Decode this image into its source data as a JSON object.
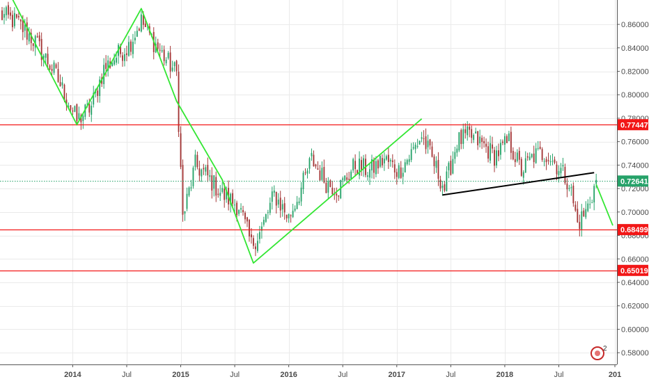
{
  "chart_data": {
    "type": "candlestick",
    "title": "",
    "xlabel": "",
    "ylabel": "",
    "ylim": [
      0.57,
      0.8808
    ],
    "xlim": [
      "2013-05-06",
      "2019-01-14"
    ],
    "grid": true,
    "y_ticks": [
      "0.58000",
      "0.60000",
      "0.62000",
      "0.64000",
      "0.66000",
      "0.68000",
      "0.70000",
      "0.72000",
      "0.74000",
      "0.76000",
      "0.78000",
      "0.80000",
      "0.82000",
      "0.84000",
      "0.86000"
    ],
    "y_tick_values": [
      0.58,
      0.6,
      0.62,
      0.64,
      0.66,
      0.68,
      0.7,
      0.72,
      0.74,
      0.76,
      0.78,
      0.8,
      0.82,
      0.84,
      0.86
    ],
    "x_ticks": [
      {
        "label": "2014",
        "date": "2014-01-06",
        "bold": true
      },
      {
        "label": "Jul",
        "date": "2014-07-07",
        "bold": false
      },
      {
        "label": "2015",
        "date": "2015-01-05",
        "bold": true
      },
      {
        "label": "Jul",
        "date": "2015-07-06",
        "bold": false
      },
      {
        "label": "2016",
        "date": "2016-01-04",
        "bold": true
      },
      {
        "label": "Jul",
        "date": "2016-07-04",
        "bold": false
      },
      {
        "label": "2017",
        "date": "2017-01-02",
        "bold": true
      },
      {
        "label": "Jul",
        "date": "2017-07-03",
        "bold": false
      },
      {
        "label": "2018",
        "date": "2018-01-01",
        "bold": true
      },
      {
        "label": "Jul",
        "date": "2018-07-02",
        "bold": false
      },
      {
        "label": "201",
        "date": "2019-01-07",
        "bold": true
      }
    ],
    "horizontal_levels": [
      {
        "value": 0.77447,
        "label": "0.77447",
        "color": "#f21717"
      },
      {
        "value": 0.68499,
        "label": "0.68499",
        "color": "#f21717"
      },
      {
        "value": 0.65019,
        "label": "0.65019",
        "color": "#f21717"
      }
    ],
    "current_price": {
      "value": 0.72641,
      "label": "0.72641",
      "color": "#26a269"
    },
    "zigzag_line": {
      "color": "#33e633",
      "points": [
        {
          "x": "2013-06-10",
          "y": 0.885
        },
        {
          "x": "2014-01-20",
          "y": 0.7745
        },
        {
          "x": "2014-08-25",
          "y": 0.8735
        },
        {
          "x": "2014-12-22",
          "y": 0.7945
        },
        {
          "x": "2015-05-25",
          "y": 0.7275
        },
        {
          "x": "2015-09-07",
          "y": 0.6565
        },
        {
          "x": "2017-03-27",
          "y": 0.7795
        }
      ]
    },
    "projection_line": {
      "color": "#33e633",
      "points": [
        {
          "x": "2018-11-05",
          "y": 0.7235
        },
        {
          "x": "2018-12-31",
          "y": 0.6885
        }
      ]
    },
    "trend_line": {
      "color": "#000000",
      "points": [
        {
          "x": "2017-06-05",
          "y": 0.7145
        },
        {
          "x": "2018-10-29",
          "y": 0.7335
        }
      ]
    },
    "badge": {
      "label": "2"
    },
    "series": [
      {
        "name": "",
        "up_color": "#26a269",
        "down_color": "#a33434",
        "anchors": [
          [
            "2013-05-06",
            0.868
          ],
          [
            "2013-07-01",
            0.862
          ],
          [
            "2013-09-02",
            0.845
          ],
          [
            "2013-11-04",
            0.82
          ],
          [
            "2014-01-20",
            0.778
          ],
          [
            "2014-03-10",
            0.79
          ],
          [
            "2014-04-21",
            0.822
          ],
          [
            "2014-06-02",
            0.833
          ],
          [
            "2014-07-14",
            0.842
          ],
          [
            "2014-08-25",
            0.863
          ],
          [
            "2014-10-06",
            0.845
          ],
          [
            "2014-11-17",
            0.83
          ],
          [
            "2014-12-22",
            0.818
          ],
          [
            "2015-01-12",
            0.695
          ],
          [
            "2015-02-23",
            0.74
          ],
          [
            "2015-04-06",
            0.73
          ],
          [
            "2015-05-25",
            0.715
          ],
          [
            "2015-07-20",
            0.705
          ],
          [
            "2015-08-31",
            0.672
          ],
          [
            "2015-10-05",
            0.685
          ],
          [
            "2015-11-16",
            0.715
          ],
          [
            "2016-01-04",
            0.695
          ],
          [
            "2016-02-15",
            0.72
          ],
          [
            "2016-03-21",
            0.745
          ],
          [
            "2016-05-09",
            0.725
          ],
          [
            "2016-06-20",
            0.72
          ],
          [
            "2016-08-15",
            0.74
          ],
          [
            "2016-10-03",
            0.735
          ],
          [
            "2016-11-21",
            0.745
          ],
          [
            "2017-01-09",
            0.735
          ],
          [
            "2017-02-20",
            0.75
          ],
          [
            "2017-03-27",
            0.765
          ],
          [
            "2017-05-01",
            0.745
          ],
          [
            "2017-06-12",
            0.72
          ],
          [
            "2017-07-24",
            0.76
          ],
          [
            "2017-09-04",
            0.765
          ],
          [
            "2017-10-16",
            0.758
          ],
          [
            "2017-11-27",
            0.748
          ],
          [
            "2018-01-15",
            0.76
          ],
          [
            "2018-02-26",
            0.735
          ],
          [
            "2018-04-09",
            0.748
          ],
          [
            "2018-05-21",
            0.75
          ],
          [
            "2018-07-02",
            0.738
          ],
          [
            "2018-08-06",
            0.725
          ],
          [
            "2018-09-03",
            0.69
          ],
          [
            "2018-10-01",
            0.7
          ],
          [
            "2018-10-22",
            0.715
          ],
          [
            "2018-11-05",
            0.7264
          ]
        ]
      }
    ]
  }
}
